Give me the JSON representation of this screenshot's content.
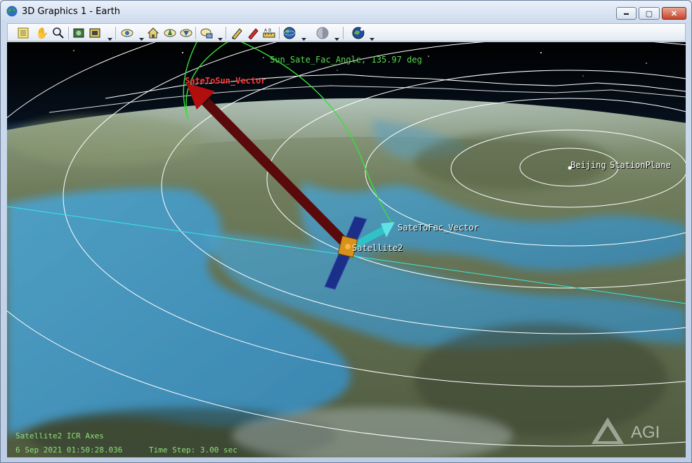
{
  "window": {
    "title": "3D Graphics 1 - Earth",
    "controls": {
      "minimize": "▬",
      "maximize": "▢",
      "close": "✕"
    }
  },
  "toolbar": {
    "buttons": [
      {
        "name": "properties-icon",
        "glyph": "▤"
      },
      {
        "name": "pan-hand-icon",
        "glyph": "✋"
      },
      {
        "name": "zoom-icon",
        "glyph": "⚲"
      },
      {
        "name": "snapshot-icon",
        "glyph": "▣"
      },
      {
        "name": "record-video-icon",
        "glyph": "◙"
      },
      {
        "name": "view-from-to-icon",
        "glyph": "◉"
      },
      {
        "name": "home-view-icon",
        "glyph": "⌂"
      },
      {
        "name": "orient-north-icon",
        "glyph": "◈"
      },
      {
        "name": "orient-top-icon",
        "glyph": "◆"
      },
      {
        "name": "measure-icon",
        "glyph": "◎"
      },
      {
        "name": "annotate-pen-icon",
        "glyph": "✎"
      },
      {
        "name": "annotate-marker-icon",
        "glyph": "✐"
      },
      {
        "name": "ruler-icon",
        "glyph": "⊞"
      },
      {
        "name": "globe-manager-icon",
        "glyph": "🌐"
      },
      {
        "name": "terrain-icon",
        "glyph": "◐"
      },
      {
        "name": "global-view-icon",
        "glyph": "◍"
      }
    ]
  },
  "scene": {
    "labels": {
      "sun_vector": "SateToSun_Vector",
      "fac_vector": "SateToFac_Vector",
      "angle": "Sun_Sate_Fac_Angle, 135.97 deg",
      "satellite": "Satellite2",
      "facility": "Beijing",
      "overlap": "StationPlane"
    },
    "colors": {
      "sun_vector": "#5a0a0a",
      "fac_vector": "#2fc3c7",
      "angle_arc": "#39e03a",
      "orbit": "#38e6e6",
      "range_rings": "#ffffff"
    }
  },
  "status": {
    "axes": "Satellite2 ICR Axes",
    "datetime": "6 Sep 2021 01:50:28.036",
    "time_step": "Time Step: 3.00 sec"
  },
  "watermark": "AGI"
}
